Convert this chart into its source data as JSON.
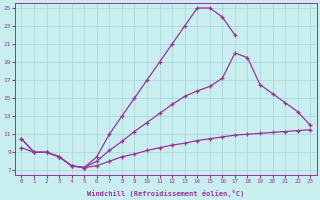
{
  "xlabel": "Windchill (Refroidissement éolien,°C)",
  "bg_color": "#c8eef0",
  "line_color": "#993399",
  "grid_color": "#aad4d8",
  "xlim": [
    -0.5,
    23.5
  ],
  "ylim": [
    6.5,
    25.5
  ],
  "yticks": [
    7,
    9,
    11,
    13,
    15,
    17,
    19,
    21,
    23,
    25
  ],
  "xticks": [
    0,
    1,
    2,
    3,
    4,
    5,
    6,
    7,
    8,
    9,
    10,
    11,
    12,
    13,
    14,
    15,
    16,
    17,
    18,
    19,
    20,
    21,
    22,
    23
  ],
  "curve1_x": [
    0,
    1,
    2,
    3,
    4,
    5,
    6,
    7,
    8,
    9,
    10,
    11,
    12,
    13,
    14,
    15,
    16,
    17
  ],
  "curve1_y": [
    10.5,
    9.0,
    9.0,
    8.5,
    7.5,
    7.3,
    8.5,
    11.0,
    13.0,
    15.0,
    17.0,
    19.0,
    21.0,
    23.0,
    25.0,
    25.0,
    24.0,
    22.0
  ],
  "curve2_x": [
    0,
    1,
    2,
    3,
    4,
    5,
    6,
    7,
    8,
    9,
    10,
    11,
    12,
    13,
    14,
    15,
    16,
    17,
    18,
    19,
    20,
    21,
    22,
    23
  ],
  "curve2_y": [
    10.5,
    9.0,
    9.0,
    8.5,
    7.5,
    7.3,
    8.0,
    9.2,
    10.2,
    11.3,
    12.3,
    13.3,
    14.3,
    15.2,
    15.8,
    16.3,
    17.2,
    20.0,
    19.5,
    16.5,
    15.5,
    14.5,
    13.5,
    12.0
  ],
  "curve3_x": [
    0,
    1,
    2,
    3,
    4,
    5,
    6,
    7,
    8,
    9,
    10,
    11,
    12,
    13,
    14,
    15,
    16,
    17,
    18,
    19,
    20,
    21,
    22,
    23
  ],
  "curve3_y": [
    9.5,
    9.0,
    9.0,
    8.5,
    7.5,
    7.3,
    7.5,
    8.0,
    8.5,
    8.8,
    9.2,
    9.5,
    9.8,
    10.0,
    10.3,
    10.5,
    10.7,
    10.9,
    11.0,
    11.1,
    11.2,
    11.3,
    11.4,
    11.5
  ]
}
